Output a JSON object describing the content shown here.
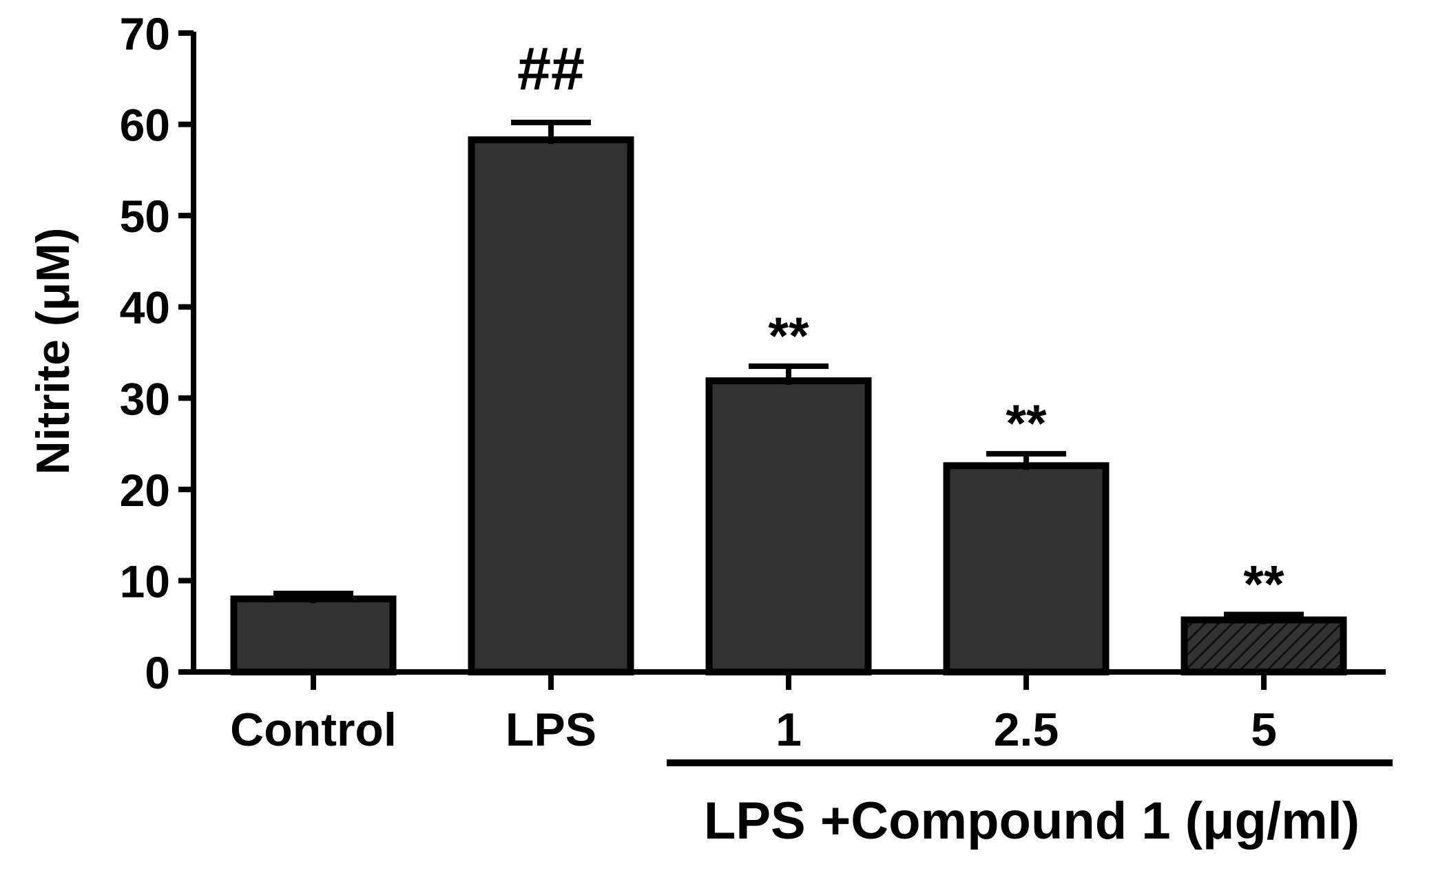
{
  "chart_data": {
    "type": "bar",
    "title": "",
    "ylabel": "Nitrite (μM)",
    "xlabel": "",
    "group_label": "LPS +Compound 1 (μg/ml)",
    "ylim": [
      0,
      70
    ],
    "yticks": [
      "0",
      "10",
      "20",
      "30",
      "40",
      "50",
      "60",
      "70"
    ],
    "grid": false,
    "legend": "none",
    "categories": [
      "Control",
      "LPS",
      "1",
      "2.5",
      "5"
    ],
    "values": [
      8.0,
      58.3,
      31.9,
      22.6,
      5.7
    ],
    "errors": [
      0.6,
      1.9,
      1.6,
      1.3,
      0.6
    ],
    "annotations": [
      "",
      "##",
      "**",
      "**",
      "**"
    ],
    "bar_fill": "#333333",
    "bar_stroke": "#000000",
    "hatched_category": "5"
  }
}
